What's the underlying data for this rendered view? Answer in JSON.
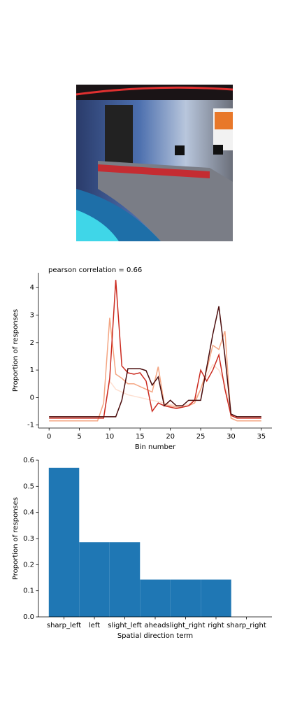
{
  "chart_data": [
    {
      "type": "line",
      "title": "pearson correlation = 0.66",
      "x_label": "Bin number",
      "y_label": "Proportion of responses",
      "x": [
        0,
        1,
        2,
        3,
        4,
        5,
        6,
        7,
        8,
        9,
        10,
        11,
        12,
        13,
        14,
        15,
        16,
        17,
        18,
        19,
        20,
        21,
        22,
        23,
        24,
        25,
        26,
        27,
        28,
        29,
        30,
        31,
        32,
        33,
        34,
        35
      ],
      "xlim": [
        -1.75,
        36.75
      ],
      "xticks": [
        0,
        5,
        10,
        15,
        20,
        25,
        30,
        35
      ],
      "ylim": [
        -1.11,
        4.54
      ],
      "yticks": [
        -1,
        0,
        1,
        2,
        3,
        4
      ],
      "series": [
        {
          "color": "#fee0d2",
          "values": [
            -0.7,
            -0.7,
            -0.7,
            -0.7,
            -0.7,
            -0.7,
            -0.7,
            -0.7,
            -0.7,
            -0.7,
            0.6,
            0.3,
            0.2,
            0.1,
            0.05,
            0,
            -0.05,
            -0.1,
            -0.15,
            -0.2,
            -0.25,
            -0.3,
            -0.3,
            -0.25,
            -0.1,
            0.3,
            0.8,
            1.2,
            1.0,
            0.5,
            -0.6,
            -0.7,
            -0.7,
            -0.7,
            -0.7,
            -0.7
          ]
        },
        {
          "color": "#f4a582",
          "values": [
            -0.85,
            -0.85,
            -0.85,
            -0.85,
            -0.85,
            -0.85,
            -0.85,
            -0.85,
            -0.85,
            -0.2,
            2.9,
            0.85,
            0.7,
            0.5,
            0.5,
            0.4,
            0.3,
            0.2,
            1.12,
            -0.25,
            -0.3,
            -0.35,
            -0.35,
            -0.3,
            -0.2,
            0.3,
            1.0,
            1.9,
            1.75,
            2.42,
            -0.75,
            -0.85,
            -0.85,
            -0.85,
            -0.85,
            -0.85
          ]
        },
        {
          "color": "#cb2a1f",
          "values": [
            -0.75,
            -0.75,
            -0.75,
            -0.75,
            -0.75,
            -0.75,
            -0.75,
            -0.75,
            -0.75,
            -0.75,
            0.7,
            4.28,
            1.15,
            0.9,
            0.85,
            0.9,
            0.6,
            -0.5,
            -0.2,
            -0.3,
            -0.35,
            -0.4,
            -0.35,
            -0.3,
            -0.1,
            1.0,
            0.6,
            1.0,
            1.55,
            0.3,
            -0.65,
            -0.75,
            -0.75,
            -0.75,
            -0.75,
            -0.75
          ]
        },
        {
          "color": "#4a0c0c",
          "values": [
            -0.7,
            -0.7,
            -0.7,
            -0.7,
            -0.7,
            -0.7,
            -0.7,
            -0.7,
            -0.7,
            -0.7,
            -0.7,
            -0.7,
            -0.1,
            1.05,
            1.05,
            1.05,
            0.98,
            0.45,
            0.75,
            -0.3,
            -0.1,
            -0.3,
            -0.3,
            -0.1,
            -0.1,
            -0.1,
            1.1,
            2.3,
            3.32,
            1.5,
            -0.6,
            -0.7,
            -0.7,
            -0.7,
            -0.7,
            -0.7
          ]
        }
      ]
    },
    {
      "type": "bar",
      "x_label": "Spatial direction term",
      "y_label": "Proportion of responses",
      "categories": [
        "sharp_left",
        "left",
        "slight_left",
        "ahead",
        "slight_right",
        "right",
        "sharp_right"
      ],
      "values": [
        0.571,
        0.286,
        0.286,
        0.143,
        0.143,
        0.143,
        0
      ],
      "color": "#1f77b4",
      "ylim": [
        0,
        0.6
      ],
      "yticks": [
        {
          "value": 0,
          "label": "0.0"
        },
        0.1,
        0.2,
        0.3,
        0.4,
        0.5,
        0.6
      ]
    }
  ]
}
